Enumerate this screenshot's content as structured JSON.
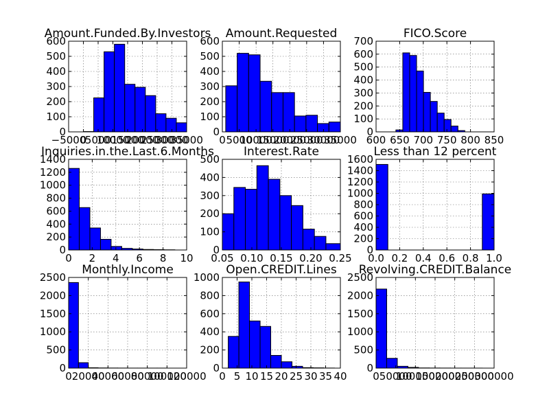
{
  "figure_title": "",
  "chart_data": [
    {
      "type": "bar",
      "title": "Amount.Funded.By.Investors",
      "grid": true,
      "bar_color": "#0000ff",
      "xlim": [
        -5000,
        35000
      ],
      "ylim": [
        0,
        600
      ],
      "xticks": [
        -5000,
        0,
        5000,
        10000,
        15000,
        20000,
        25000,
        30000,
        35000
      ],
      "xtick_labels": [
        "−5000",
        "0",
        "5000",
        "10000",
        "15000",
        "20000",
        "25000",
        "30000",
        "35000"
      ],
      "yticks": [
        0,
        100,
        200,
        300,
        400,
        500,
        600
      ],
      "ytick_labels": [
        "0",
        "100",
        "200",
        "300",
        "400",
        "500",
        "600"
      ],
      "bin_edges": [
        -0.01,
        3500,
        7000,
        10500,
        14000,
        17500,
        21000,
        24500,
        28000,
        31500,
        35000
      ],
      "counts": [
        2,
        225,
        530,
        580,
        315,
        295,
        240,
        120,
        90,
        60
      ]
    },
    {
      "type": "bar",
      "title": "Amount.Requested",
      "grid": true,
      "bar_color": "#0000ff",
      "xlim": [
        0,
        35000
      ],
      "ylim": [
        0,
        600
      ],
      "xticks": [
        0,
        5000,
        10000,
        15000,
        20000,
        25000,
        30000,
        35000
      ],
      "xtick_labels": [
        "0",
        "5000",
        "10000",
        "15000",
        "20000",
        "25000",
        "30000",
        "35000"
      ],
      "yticks": [
        0,
        100,
        200,
        300,
        400,
        500,
        600
      ],
      "ytick_labels": [
        "0",
        "100",
        "200",
        "300",
        "400",
        "500",
        "600"
      ],
      "bin_edges": [
        1000,
        4400,
        7800,
        11200,
        14600,
        18000,
        21400,
        24800,
        28200,
        31600,
        35000
      ],
      "counts": [
        305,
        520,
        510,
        335,
        260,
        260,
        105,
        110,
        55,
        65
      ]
    },
    {
      "type": "bar",
      "title": "FICO.Score",
      "grid": true,
      "bar_color": "#0000ff",
      "xlim": [
        600,
        850
      ],
      "ylim": [
        0,
        700
      ],
      "xticks": [
        600,
        650,
        700,
        750,
        800,
        850
      ],
      "xtick_labels": [
        "600",
        "650",
        "700",
        "750",
        "800",
        "850"
      ],
      "yticks": [
        0,
        100,
        200,
        300,
        400,
        500,
        600,
        700
      ],
      "ytick_labels": [
        "0",
        "100",
        "200",
        "300",
        "400",
        "500",
        "600",
        "700"
      ],
      "bin_edges": [
        642,
        656.6,
        671.2,
        685.8,
        700.4,
        715,
        729.6,
        744.2,
        758.8,
        773.4,
        788,
        802.6,
        817.2,
        831.8
      ],
      "counts": [
        15,
        610,
        590,
        470,
        305,
        235,
        145,
        95,
        45,
        10,
        0,
        0,
        0
      ]
    },
    {
      "type": "bar",
      "title": "Inquiries.in.the.Last.6.Months",
      "grid": true,
      "bar_color": "#0000ff",
      "xlim": [
        0,
        10
      ],
      "ylim": [
        0,
        1400
      ],
      "xticks": [
        0,
        2,
        4,
        6,
        8,
        10
      ],
      "xtick_labels": [
        "0",
        "2",
        "4",
        "6",
        "8",
        "10"
      ],
      "yticks": [
        0,
        200,
        400,
        600,
        800,
        1000,
        1200,
        1400
      ],
      "ytick_labels": [
        "0",
        "200",
        "400",
        "600",
        "800",
        "1000",
        "1200",
        "1400"
      ],
      "bin_edges": [
        0,
        0.9,
        1.8,
        2.7,
        3.6,
        4.5,
        5.4,
        6.3,
        7.2,
        8.1,
        9
      ],
      "counts": [
        1260,
        655,
        340,
        165,
        55,
        25,
        15,
        8,
        5,
        3
      ]
    },
    {
      "type": "bar",
      "title": "Interest.Rate",
      "grid": true,
      "bar_color": "#0000ff",
      "xlim": [
        0.05,
        0.25
      ],
      "ylim": [
        0,
        500
      ],
      "xticks": [
        0.05,
        0.1,
        0.15,
        0.2,
        0.25
      ],
      "xtick_labels": [
        "0.05",
        "0.10",
        "0.15",
        "0.20",
        "0.25"
      ],
      "yticks": [
        0,
        100,
        200,
        300,
        400,
        500
      ],
      "ytick_labels": [
        "0",
        "100",
        "200",
        "300",
        "400",
        "500"
      ],
      "bin_edges": [
        0.05,
        0.0695,
        0.089,
        0.1085,
        0.128,
        0.1475,
        0.167,
        0.1865,
        0.206,
        0.2255,
        0.25
      ],
      "counts": [
        200,
        345,
        335,
        465,
        390,
        300,
        245,
        115,
        75,
        35
      ]
    },
    {
      "type": "bar",
      "title": "Less than 12 percent",
      "grid": true,
      "bar_color": "#0000ff",
      "xlim": [
        0,
        1
      ],
      "ylim": [
        0,
        1600
      ],
      "xticks": [
        0,
        0.2,
        0.4,
        0.6,
        0.8,
        1.0
      ],
      "xtick_labels": [
        "0.0",
        "0.2",
        "0.4",
        "0.6",
        "0.8",
        "1.0"
      ],
      "yticks": [
        0,
        200,
        400,
        600,
        800,
        1000,
        1200,
        1400,
        1600
      ],
      "ytick_labels": [
        "0",
        "200",
        "400",
        "600",
        "800",
        "1000",
        "1200",
        "1400",
        "1600"
      ],
      "bin_edges": [
        0,
        0.1,
        0.2,
        0.3,
        0.4,
        0.5,
        0.6,
        0.7,
        0.8,
        0.9,
        1.0
      ],
      "counts": [
        1510,
        0,
        0,
        0,
        0,
        0,
        0,
        0,
        0,
        990
      ]
    },
    {
      "type": "bar",
      "title": "Monthly.Income",
      "grid": true,
      "bar_color": "#0000ff",
      "xlim": [
        0,
        120000
      ],
      "ylim": [
        0,
        2500
      ],
      "xticks": [
        0,
        20000,
        40000,
        60000,
        80000,
        100000,
        120000
      ],
      "xtick_labels": [
        "0",
        "20000",
        "40000",
        "60000",
        "80000",
        "100000",
        "120000"
      ],
      "yticks": [
        0,
        500,
        1000,
        1500,
        2000,
        2500
      ],
      "ytick_labels": [
        "0",
        "500",
        "1000",
        "1500",
        "2000",
        "2500"
      ],
      "bin_edges": [
        0,
        10000,
        20000,
        30000,
        40000,
        50000,
        60000,
        70000,
        80000,
        90000,
        100000
      ],
      "counts": [
        2360,
        150,
        10,
        5,
        3,
        2,
        1,
        1,
        1,
        1
      ]
    },
    {
      "type": "bar",
      "title": "Open.CREDIT.Lines",
      "grid": true,
      "bar_color": "#0000ff",
      "xlim": [
        0,
        40
      ],
      "ylim": [
        0,
        1000
      ],
      "xticks": [
        0,
        5,
        10,
        15,
        20,
        25,
        30,
        35,
        40
      ],
      "xtick_labels": [
        "0",
        "5",
        "10",
        "15",
        "20",
        "25",
        "30",
        "35",
        "40"
      ],
      "yticks": [
        0,
        200,
        400,
        600,
        800,
        1000
      ],
      "ytick_labels": [
        "0",
        "200",
        "400",
        "600",
        "800",
        "1000"
      ],
      "bin_edges": [
        2,
        5.6,
        9.2,
        12.8,
        16.4,
        20,
        23.6,
        27.2,
        30.8,
        34.4,
        38
      ],
      "counts": [
        350,
        950,
        520,
        460,
        140,
        70,
        20,
        5,
        3,
        1
      ]
    },
    {
      "type": "bar",
      "title": "Revolving.CREDIT.Balance",
      "grid": true,
      "bar_color": "#0000ff",
      "xlim": [
        0,
        300000
      ],
      "ylim": [
        0,
        2500
      ],
      "xticks": [
        0,
        50000,
        100000,
        150000,
        200000,
        250000,
        300000
      ],
      "xtick_labels": [
        "0",
        "50000",
        "100000",
        "150000",
        "200000",
        "250000",
        "300000"
      ],
      "yticks": [
        0,
        500,
        1000,
        1500,
        2000,
        2500
      ],
      "ytick_labels": [
        "0",
        "500",
        "1000",
        "1500",
        "2000",
        "2500"
      ],
      "bin_edges": [
        0,
        27000,
        54000,
        81000,
        108000,
        135000,
        162000,
        189000,
        216000,
        243000,
        270000
      ],
      "counts": [
        2180,
        270,
        50,
        20,
        5,
        3,
        2,
        1,
        1,
        1
      ]
    }
  ]
}
